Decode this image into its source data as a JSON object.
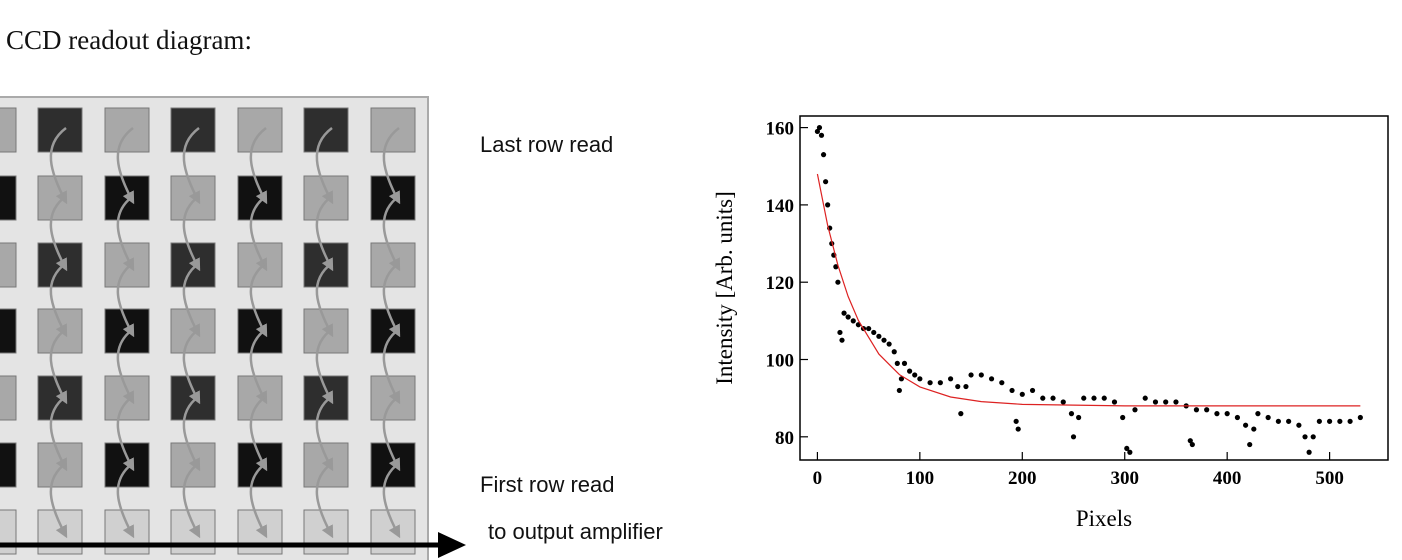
{
  "diagram": {
    "title": "CCD readout diagram:",
    "last_row_label": "Last row read",
    "first_row_label": "First row read",
    "output_label": "to output amplifier"
  },
  "chart_data": {
    "type": "scatter",
    "x_label": "Pixels",
    "y_label": "Intensity [Arb. units]",
    "xlim": [
      -17,
      557
    ],
    "ylim": [
      74,
      163
    ],
    "xticks": [
      0,
      100,
      200,
      300,
      400,
      500
    ],
    "yticks": [
      80,
      100,
      120,
      140,
      160
    ],
    "series": [
      {
        "type": "scatter",
        "color": "#000000",
        "x": [
          0,
          2,
          4,
          6,
          8,
          10,
          12,
          14,
          16,
          18,
          20,
          22,
          24,
          26,
          30,
          35,
          40,
          45,
          50,
          55,
          60,
          65,
          70,
          75,
          78,
          80,
          82,
          85,
          90,
          95,
          100,
          110,
          120,
          130,
          137,
          140,
          145,
          150,
          160,
          170,
          180,
          190,
          194,
          196,
          200,
          210,
          220,
          230,
          240,
          248,
          250,
          255,
          260,
          270,
          280,
          290,
          298,
          302,
          305,
          310,
          320,
          330,
          340,
          350,
          360,
          364,
          366,
          370,
          380,
          390,
          400,
          410,
          418,
          422,
          426,
          430,
          440,
          450,
          460,
          470,
          476,
          480,
          484,
          490,
          500,
          510,
          520,
          530
        ],
        "values": [
          159,
          160,
          158,
          153,
          146,
          140,
          134,
          130,
          127,
          124,
          120,
          107,
          105,
          112,
          111,
          110,
          109,
          108,
          108,
          107,
          106,
          105,
          104,
          102,
          99,
          92,
          95,
          99,
          97,
          96,
          95,
          94,
          94,
          95,
          93,
          86,
          93,
          96,
          96,
          95,
          94,
          92,
          84,
          82,
          91,
          92,
          90,
          90,
          89,
          86,
          80,
          85,
          90,
          90,
          90,
          89,
          85,
          77,
          76,
          87,
          90,
          89,
          89,
          89,
          88,
          79,
          78,
          87,
          87,
          86,
          86,
          85,
          83,
          78,
          82,
          86,
          85,
          84,
          84,
          83,
          80,
          76,
          80,
          84,
          84,
          84,
          84,
          85
        ]
      },
      {
        "type": "line",
        "color": "#dd2222",
        "x": [
          0,
          10,
          20,
          30,
          40,
          60,
          80,
          100,
          130,
          160,
          200,
          250,
          300,
          400,
          530
        ],
        "values": [
          148,
          134.7,
          124.4,
          116.3,
          110.1,
          101.4,
          96.1,
          92.9,
          90.3,
          89.1,
          88.4,
          88.2,
          88,
          88,
          88
        ]
      }
    ]
  }
}
